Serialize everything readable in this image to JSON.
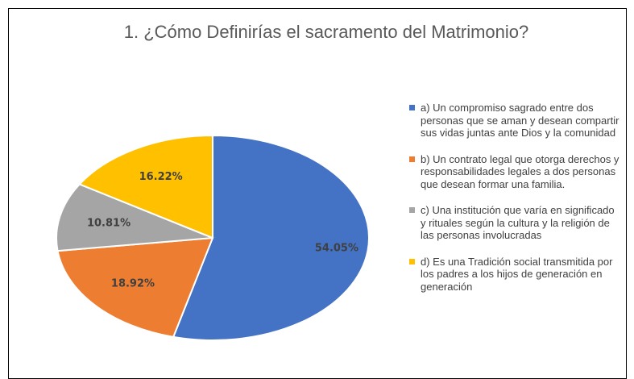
{
  "chart_data": {
    "type": "pie",
    "title": "1. ¿Cómo Definirías el sacramento del Matrimonio?",
    "categories": [
      "a) Un compromiso sagrado entre dos personas que se aman y desean compartir sus vidas juntas ante Dios y la comunidad",
      "b) Un contrato legal que otorga derechos y responsabilidades legales a dos personas que desean formar una familia.",
      "c) Una institución que varía en significado y rituales según la cultura y la religión de las personas involucradas",
      "d)  Es una Tradición social transmitida por los padres a los hijos de generación en generación"
    ],
    "values": [
      54.05,
      18.92,
      10.81,
      16.22
    ],
    "value_labels": [
      "54.05%",
      "18.92%",
      "10.81%",
      "16.22%"
    ],
    "colors": [
      "#4472c4",
      "#ed7d31",
      "#a5a5a5",
      "#ffc000"
    ],
    "legend": "right"
  }
}
